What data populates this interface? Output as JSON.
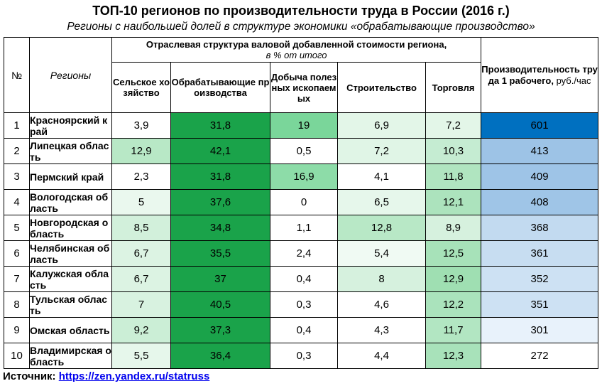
{
  "title": "ТОП-10 регионов по производительности труда в России (2016 г.)",
  "subtitle": "Регионы с наибольшей долей в структуре экономики «обрабатывающие производство»",
  "headers": {
    "num": "№",
    "region": "Регионы",
    "group_title": "Отраслевая структура валовой добавленной стоимости региона,",
    "group_unit": "в % от итого",
    "agriculture": "Сельское хозяйство",
    "manufacturing": "Обрабатывающие производства",
    "mining": "Добыча полезных ископаемых",
    "construction": "Строительство",
    "trade": "Торговля",
    "productivity": "Производительность труда 1 рабочего,",
    "productivity_unit": "руб./час"
  },
  "rows": [
    {
      "num": "1",
      "region": "Красноярский край",
      "agriculture": "3,9",
      "manufacturing": "31,8",
      "mining": "19",
      "construction": "6,9",
      "trade": "7,2",
      "productivity": "601"
    },
    {
      "num": "2",
      "region": "Липецкая область",
      "agriculture": "12,9",
      "manufacturing": "42,1",
      "mining": "0,5",
      "construction": "7,2",
      "trade": "10,3",
      "productivity": "413"
    },
    {
      "num": "3",
      "region": "Пермский край",
      "agriculture": "2,3",
      "manufacturing": "31,8",
      "mining": "16,9",
      "construction": "4,1",
      "trade": "11,8",
      "productivity": "409"
    },
    {
      "num": "4",
      "region": "Вологодская область",
      "agriculture": "5",
      "manufacturing": "37,6",
      "mining": "0",
      "construction": "6,5",
      "trade": "12,1",
      "productivity": "408"
    },
    {
      "num": "5",
      "region": "Новгородская область",
      "agriculture": "8,5",
      "manufacturing": "34,8",
      "mining": "1,1",
      "construction": "12,8",
      "trade": "8,9",
      "productivity": "368"
    },
    {
      "num": "6",
      "region": "Челябинская область",
      "agriculture": "6,7",
      "manufacturing": "35,5",
      "mining": "2,4",
      "construction": "5,4",
      "trade": "12,5",
      "productivity": "361"
    },
    {
      "num": "7",
      "region": "Калужская область",
      "agriculture": "6,7",
      "manufacturing": "37",
      "mining": "0,4",
      "construction": "8",
      "trade": "12,9",
      "productivity": "352"
    },
    {
      "num": "8",
      "region": "Тульская область",
      "agriculture": "7",
      "manufacturing": "40,5",
      "mining": "0,3",
      "construction": "4,6",
      "trade": "12,2",
      "productivity": "351"
    },
    {
      "num": "9",
      "region": "Омская область",
      "agriculture": "9,2",
      "manufacturing": "37,3",
      "mining": "0,4",
      "construction": "4,3",
      "trade": "11,7",
      "productivity": "301"
    },
    {
      "num": "10",
      "region": "Владимирская область",
      "agriculture": "5,5",
      "manufacturing": "36,4",
      "mining": "0,3",
      "construction": "4,4",
      "trade": "12,3",
      "productivity": "272"
    }
  ],
  "source_label": "Источник:",
  "source_link": "https://zen.yandex.ru/statruss",
  "colors": {
    "green_strong": "#1aa34a",
    "green_mid": "#7ad69a",
    "green_light": "#c9efd4",
    "green_pale": "#e3f6e8",
    "blue_strong": "#0070c0",
    "blue_mid": "#9dc3e6",
    "blue_light": "#c5dcf0",
    "blue_pale": "#e2eef9"
  },
  "cell_fills": {
    "agriculture": [
      "#ffffff",
      "#b8e8c6",
      "#ffffff",
      "#eaf8ee",
      "#d2f0db",
      "#dcf3e3",
      "#dcf3e3",
      "#d8f2e0",
      "#cbeed6",
      "#e6f7eb"
    ],
    "manufacturing": [
      "#1aa34a",
      "#1aa34a",
      "#1aa34a",
      "#1aa34a",
      "#1aa34a",
      "#1aa34a",
      "#1aa34a",
      "#1aa34a",
      "#1aa34a",
      "#1aa34a"
    ],
    "mining": [
      "#7ad69a",
      "#ffffff",
      "#8ddca8",
      "#ffffff",
      "#ffffff",
      "#ffffff",
      "#ffffff",
      "#ffffff",
      "#ffffff",
      "#ffffff"
    ],
    "construction": [
      "#e3f6e8",
      "#e0f5e6",
      "#ffffff",
      "#e6f7eb",
      "#b8e8c6",
      "#f0faf3",
      "#d6f1de",
      "#ffffff",
      "#ffffff",
      "#ffffff"
    ],
    "trade": [
      "#e3f6e8",
      "#c5ecd2",
      "#b0e5c0",
      "#acE3bd",
      "#d6f1de",
      "#a7e2b9",
      "#9fdfb2",
      "#aae3bc",
      "#b2e6c2",
      "#a8e2ba"
    ],
    "productivity": [
      "#0070c0",
      "#9dc3e6",
      "#9ec4e7",
      "#9fc5e7",
      "#c2daf0",
      "#c7ddf1",
      "#cde1f3",
      "#cde1f3",
      "#e8f2fb",
      "#ffffff"
    ]
  }
}
